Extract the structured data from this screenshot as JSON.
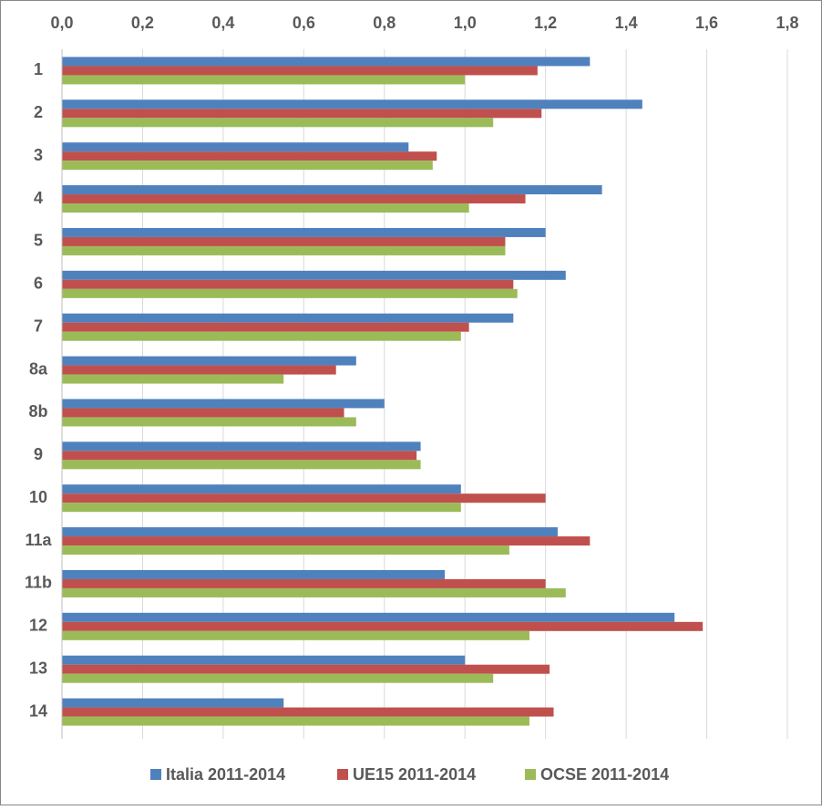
{
  "chart_data": {
    "type": "bar",
    "orientation": "horizontal",
    "categories": [
      "1",
      "2",
      "3",
      "4",
      "5",
      "6",
      "7",
      "8a",
      "8b",
      "9",
      "10",
      "11a",
      "11b",
      "12",
      "13",
      "14"
    ],
    "series": [
      {
        "name": "Italia 2011-2014",
        "color": "#4f81bd",
        "values": [
          1.31,
          1.44,
          0.86,
          1.34,
          1.2,
          1.25,
          1.12,
          0.73,
          0.8,
          0.89,
          0.99,
          1.23,
          0.95,
          1.52,
          1.0,
          0.55
        ]
      },
      {
        "name": "UE15 2011-2014",
        "color": "#c0504d",
        "values": [
          1.18,
          1.19,
          0.93,
          1.15,
          1.1,
          1.12,
          1.01,
          0.68,
          0.7,
          0.88,
          1.2,
          1.31,
          1.2,
          1.59,
          1.21,
          1.22
        ]
      },
      {
        "name": "OCSE 2011-2014",
        "color": "#9bbb59",
        "values": [
          1.0,
          1.07,
          0.92,
          1.01,
          1.1,
          1.13,
          0.99,
          0.55,
          0.73,
          0.89,
          0.99,
          1.11,
          1.25,
          1.16,
          1.07,
          1.16
        ]
      }
    ],
    "xlim": [
      0,
      1.8
    ],
    "xticks": [
      {
        "value": 0,
        "label": "0,0"
      },
      {
        "value": 0.2,
        "label": "0,2"
      },
      {
        "value": 0.4,
        "label": "0,4"
      },
      {
        "value": 0.6,
        "label": "0,6"
      },
      {
        "value": 0.8,
        "label": "0,8"
      },
      {
        "value": 1.0,
        "label": "1,0"
      },
      {
        "value": 1.2,
        "label": "1,2"
      },
      {
        "value": 1.4,
        "label": "1,4"
      },
      {
        "value": 1.6,
        "label": "1,6"
      },
      {
        "value": 1.8,
        "label": "1,8"
      }
    ],
    "grid": true,
    "legend": "bottom"
  }
}
